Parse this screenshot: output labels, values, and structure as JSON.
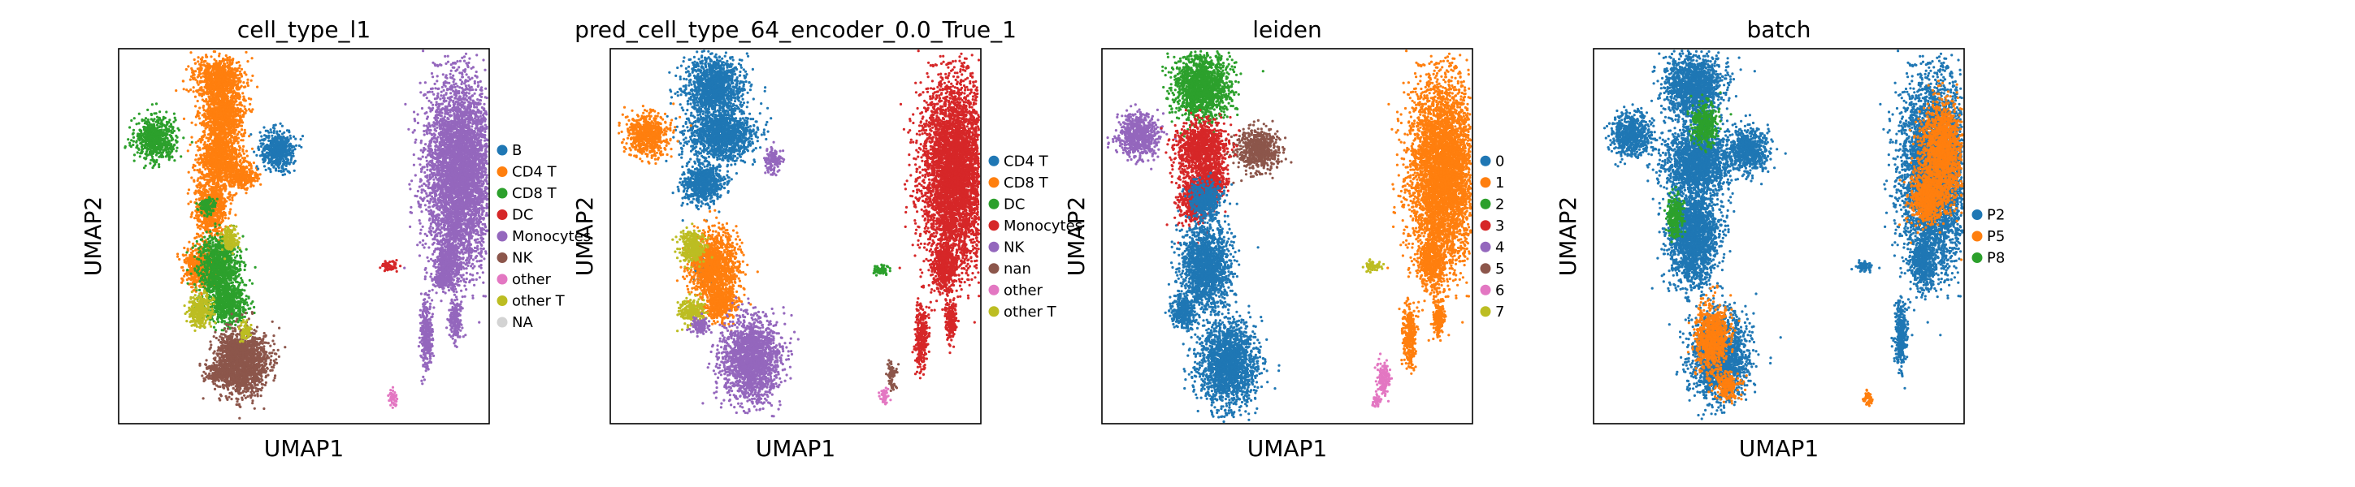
{
  "chart_data": [
    {
      "type": "scatter",
      "title": "cell_type_l1",
      "xlabel": "UMAP1",
      "ylabel": "UMAP2",
      "legend_position": "right",
      "series": [
        {
          "name": "B",
          "color": "#1f77b4"
        },
        {
          "name": "CD4 T",
          "color": "#ff7f0e"
        },
        {
          "name": "CD8 T",
          "color": "#2ca02c"
        },
        {
          "name": "DC",
          "color": "#d62728"
        },
        {
          "name": "Monocytes",
          "color": "#9467bd"
        },
        {
          "name": "NK",
          "color": "#8c564b"
        },
        {
          "name": "other",
          "color": "#e377c2"
        },
        {
          "name": "other T",
          "color": "#bcbd22"
        },
        {
          "name": "NA",
          "color": "#d3d3d3"
        }
      ],
      "clusters": [
        {
          "color": "#ff7f0e",
          "shapes": [
            [
              0.27,
              0.08,
              0.06,
              0.05
            ],
            [
              0.28,
              0.18,
              0.05,
              0.08
            ],
            [
              0.27,
              0.3,
              0.05,
              0.06
            ],
            [
              0.25,
              0.42,
              0.04,
              0.07
            ],
            [
              0.22,
              0.58,
              0.04,
              0.05
            ],
            [
              0.33,
              0.34,
              0.04,
              0.03
            ]
          ]
        },
        {
          "color": "#2ca02c",
          "shapes": [
            [
              0.1,
              0.24,
              0.05,
              0.05
            ],
            [
              0.27,
              0.58,
              0.05,
              0.07
            ],
            [
              0.29,
              0.68,
              0.05,
              0.05
            ],
            [
              0.24,
              0.42,
              0.02,
              0.02
            ]
          ]
        },
        {
          "color": "#1f77b4",
          "shapes": [
            [
              0.43,
              0.27,
              0.04,
              0.05
            ]
          ]
        },
        {
          "color": "#8c564b",
          "shapes": [
            [
              0.34,
              0.84,
              0.06,
              0.08
            ],
            [
              0.31,
              0.8,
              0.04,
              0.03
            ],
            [
              0.28,
              0.86,
              0.04,
              0.03
            ]
          ]
        },
        {
          "color": "#bcbd22",
          "shapes": [
            [
              0.22,
              0.7,
              0.03,
              0.04
            ],
            [
              0.3,
              0.51,
              0.02,
              0.03
            ],
            [
              0.34,
              0.75,
              0.015,
              0.02
            ]
          ]
        },
        {
          "color": "#9467bd",
          "shapes": [
            [
              0.92,
              0.33,
              0.08,
              0.22
            ],
            [
              0.89,
              0.57,
              0.03,
              0.06
            ],
            [
              0.83,
              0.76,
              0.015,
              0.08
            ],
            [
              0.87,
              0.62,
              0.02,
              0.02
            ],
            [
              0.91,
              0.72,
              0.015,
              0.05
            ]
          ]
        },
        {
          "color": "#d62728",
          "shapes": [
            [
              0.73,
              0.58,
              0.02,
              0.012
            ]
          ]
        },
        {
          "color": "#e377c2",
          "shapes": [
            [
              0.74,
              0.93,
              0.01,
              0.02
            ]
          ]
        }
      ]
    },
    {
      "type": "scatter",
      "title": "pred_cell_type_64_encoder_0.0_True_1",
      "xlabel": "UMAP1",
      "ylabel": "UMAP2",
      "legend_position": "right",
      "series": [
        {
          "name": "CD4 T",
          "color": "#1f77b4"
        },
        {
          "name": "CD8 T",
          "color": "#ff7f0e"
        },
        {
          "name": "DC",
          "color": "#2ca02c"
        },
        {
          "name": "Monocytes",
          "color": "#d62728"
        },
        {
          "name": "NK",
          "color": "#9467bd"
        },
        {
          "name": "nan",
          "color": "#8c564b"
        },
        {
          "name": "other",
          "color": "#e377c2"
        },
        {
          "name": "other T",
          "color": "#bcbd22"
        }
      ],
      "clusters": [
        {
          "color": "#1f77b4",
          "shapes": [
            [
              0.28,
              0.1,
              0.07,
              0.07
            ],
            [
              0.3,
              0.23,
              0.08,
              0.06
            ],
            [
              0.25,
              0.36,
              0.05,
              0.05
            ],
            [
              0.26,
              0.58,
              0.03,
              0.03
            ]
          ]
        },
        {
          "color": "#ff7f0e",
          "shapes": [
            [
              0.1,
              0.23,
              0.05,
              0.05
            ],
            [
              0.28,
              0.58,
              0.06,
              0.08
            ],
            [
              0.3,
              0.68,
              0.04,
              0.04
            ]
          ]
        },
        {
          "color": "#bcbd22",
          "shapes": [
            [
              0.22,
              0.53,
              0.03,
              0.04
            ],
            [
              0.22,
              0.7,
              0.03,
              0.03
            ]
          ]
        },
        {
          "color": "#9467bd",
          "shapes": [
            [
              0.38,
              0.83,
              0.07,
              0.1
            ],
            [
              0.44,
              0.3,
              0.02,
              0.03
            ],
            [
              0.24,
              0.74,
              0.02,
              0.02
            ]
          ]
        },
        {
          "color": "#d62728",
          "shapes": [
            [
              0.93,
              0.33,
              0.08,
              0.22
            ],
            [
              0.9,
              0.58,
              0.03,
              0.06
            ],
            [
              0.84,
              0.77,
              0.015,
              0.08
            ],
            [
              0.92,
              0.72,
              0.015,
              0.05
            ]
          ]
        },
        {
          "color": "#2ca02c",
          "shapes": [
            [
              0.73,
              0.59,
              0.02,
              0.012
            ]
          ]
        },
        {
          "color": "#e377c2",
          "shapes": [
            [
              0.74,
              0.93,
              0.01,
              0.02
            ]
          ]
        },
        {
          "color": "#8c564b",
          "shapes": [
            [
              0.76,
              0.87,
              0.01,
              0.03
            ]
          ]
        }
      ]
    },
    {
      "type": "scatter",
      "title": "leiden",
      "xlabel": "UMAP1",
      "ylabel": "UMAP2",
      "legend_position": "right",
      "series": [
        {
          "name": "0",
          "color": "#1f77b4"
        },
        {
          "name": "1",
          "color": "#ff7f0e"
        },
        {
          "name": "2",
          "color": "#2ca02c"
        },
        {
          "name": "3",
          "color": "#d62728"
        },
        {
          "name": "4",
          "color": "#9467bd"
        },
        {
          "name": "5",
          "color": "#8c564b"
        },
        {
          "name": "6",
          "color": "#e377c2"
        },
        {
          "name": "7",
          "color": "#bcbd22"
        }
      ],
      "clusters": [
        {
          "color": "#2ca02c",
          "shapes": [
            [
              0.27,
              0.1,
              0.07,
              0.08
            ]
          ]
        },
        {
          "color": "#9467bd",
          "shapes": [
            [
              0.1,
              0.23,
              0.05,
              0.05
            ]
          ]
        },
        {
          "color": "#8c564b",
          "shapes": [
            [
              0.42,
              0.27,
              0.05,
              0.05
            ]
          ]
        },
        {
          "color": "#d62728",
          "shapes": [
            [
              0.27,
              0.27,
              0.06,
              0.07
            ],
            [
              0.25,
              0.4,
              0.04,
              0.06
            ],
            [
              0.3,
              0.36,
              0.03,
              0.04
            ]
          ]
        },
        {
          "color": "#1f77b4",
          "shapes": [
            [
              0.28,
              0.4,
              0.04,
              0.04
            ],
            [
              0.28,
              0.58,
              0.06,
              0.1
            ],
            [
              0.34,
              0.84,
              0.07,
              0.1
            ],
            [
              0.22,
              0.7,
              0.03,
              0.04
            ]
          ]
        },
        {
          "color": "#ff7f0e",
          "shapes": [
            [
              0.92,
              0.33,
              0.08,
              0.22
            ],
            [
              0.89,
              0.57,
              0.03,
              0.06
            ],
            [
              0.83,
              0.76,
              0.015,
              0.08
            ],
            [
              0.91,
              0.72,
              0.015,
              0.05
            ]
          ]
        },
        {
          "color": "#bcbd22",
          "shapes": [
            [
              0.73,
              0.58,
              0.02,
              0.012
            ]
          ]
        },
        {
          "color": "#e377c2",
          "shapes": [
            [
              0.76,
              0.88,
              0.015,
              0.04
            ],
            [
              0.74,
              0.94,
              0.01,
              0.015
            ]
          ]
        }
      ]
    },
    {
      "type": "scatter",
      "title": "batch",
      "xlabel": "UMAP1",
      "ylabel": "UMAP2",
      "legend_position": "right",
      "series": [
        {
          "name": "P2",
          "color": "#1f77b4"
        },
        {
          "name": "P5",
          "color": "#ff7f0e"
        },
        {
          "name": "P8",
          "color": "#2ca02c"
        }
      ],
      "clusters": [
        {
          "color": "#1f77b4",
          "shapes": [
            [
              0.27,
              0.1,
              0.07,
              0.08
            ],
            [
              0.1,
              0.23,
              0.05,
              0.05
            ],
            [
              0.42,
              0.27,
              0.05,
              0.05
            ],
            [
              0.28,
              0.3,
              0.08,
              0.08
            ],
            [
              0.27,
              0.5,
              0.06,
              0.12
            ],
            [
              0.34,
              0.82,
              0.07,
              0.1
            ],
            [
              0.92,
              0.33,
              0.08,
              0.22
            ],
            [
              0.89,
              0.57,
              0.03,
              0.06
            ],
            [
              0.83,
              0.76,
              0.015,
              0.08
            ],
            [
              0.73,
              0.58,
              0.02,
              0.012
            ]
          ]
        },
        {
          "color": "#ff7f0e",
          "shapes": [
            [
              0.94,
              0.28,
              0.05,
              0.12
            ],
            [
              0.9,
              0.4,
              0.04,
              0.06
            ],
            [
              0.32,
              0.77,
              0.04,
              0.08
            ],
            [
              0.36,
              0.9,
              0.03,
              0.03
            ],
            [
              0.74,
              0.93,
              0.01,
              0.02
            ]
          ]
        },
        {
          "color": "#2ca02c",
          "shapes": [
            [
              0.3,
              0.2,
              0.03,
              0.05
            ],
            [
              0.22,
              0.45,
              0.02,
              0.05
            ]
          ]
        }
      ]
    }
  ]
}
